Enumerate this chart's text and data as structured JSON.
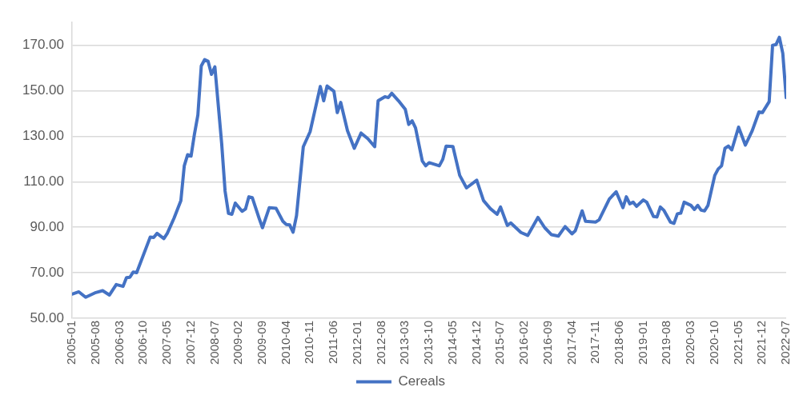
{
  "chart_data": {
    "type": "line",
    "xlim": [
      "2005-01",
      "2022-07"
    ],
    "xticks": [
      "2005-01",
      "2005-08",
      "2006-03",
      "2006-10",
      "2007-05",
      "2007-12",
      "2008-07",
      "2009-02",
      "2009-09",
      "2010-04",
      "2010-11",
      "2011-06",
      "2012-01",
      "2012-08",
      "2013-03",
      "2013-10",
      "2014-05",
      "2014-12",
      "2015-07",
      "2016-02",
      "2016-09",
      "2017-04",
      "2017-11",
      "2018-06",
      "2019-01",
      "2019-08",
      "2020-03",
      "2020-10",
      "2021-05",
      "2021-12",
      "2022-07"
    ],
    "ylim": [
      50,
      180
    ],
    "yticks": [
      {
        "value": 50,
        "label": "50.00"
      },
      {
        "value": 70,
        "label": "70.00"
      },
      {
        "value": 90,
        "label": "90.00"
      },
      {
        "value": 110,
        "label": "110.00"
      },
      {
        "value": 130,
        "label": "130.00"
      },
      {
        "value": 150,
        "label": "150.00"
      },
      {
        "value": 170,
        "label": "170.00"
      }
    ],
    "grid": "y",
    "legend": "bottom",
    "marker": "none",
    "line_style": "solid",
    "series": [
      {
        "name": "Cereals",
        "color": "#4472c4",
        "x": [
          "2005-01",
          "2005-03",
          "2005-05",
          "2005-08",
          "2005-10",
          "2005-12",
          "2006-02",
          "2006-04",
          "2006-05",
          "2006-06",
          "2006-07",
          "2006-08",
          "2006-12",
          "2007-01",
          "2007-02",
          "2007-04",
          "2007-05",
          "2007-07",
          "2007-09",
          "2007-10",
          "2007-11",
          "2007-12",
          "2008-01",
          "2008-02",
          "2008-03",
          "2008-04",
          "2008-05",
          "2008-06",
          "2008-07",
          "2008-09",
          "2008-10",
          "2008-11",
          "2008-12",
          "2009-01",
          "2009-03",
          "2009-04",
          "2009-05",
          "2009-06",
          "2009-08",
          "2009-09",
          "2009-11",
          "2010-01",
          "2010-03",
          "2010-04",
          "2010-05",
          "2010-06",
          "2010-07",
          "2010-09",
          "2010-11",
          "2011-02",
          "2011-03",
          "2011-04",
          "2011-06",
          "2011-07",
          "2011-08",
          "2011-10",
          "2011-12",
          "2012-02",
          "2012-04",
          "2012-06",
          "2012-07",
          "2012-09",
          "2012-10",
          "2012-11",
          "2013-01",
          "2013-03",
          "2013-04",
          "2013-05",
          "2013-06",
          "2013-08",
          "2013-09",
          "2013-10",
          "2014-01",
          "2014-02",
          "2014-03",
          "2014-05",
          "2014-07",
          "2014-09",
          "2014-12",
          "2015-02",
          "2015-04",
          "2015-06",
          "2015-07",
          "2015-09",
          "2015-10",
          "2016-01",
          "2016-03",
          "2016-06",
          "2016-08",
          "2016-10",
          "2016-12",
          "2017-02",
          "2017-04",
          "2017-05",
          "2017-07",
          "2017-08",
          "2017-11",
          "2017-12",
          "2018-03",
          "2018-05",
          "2018-07",
          "2018-08",
          "2018-09",
          "2018-10",
          "2018-11",
          "2019-01",
          "2019-02",
          "2019-04",
          "2019-05",
          "2019-06",
          "2019-07",
          "2019-09",
          "2019-10",
          "2019-11",
          "2019-12",
          "2020-01",
          "2020-03",
          "2020-04",
          "2020-05",
          "2020-06",
          "2020-07",
          "2020-08",
          "2020-10",
          "2020-11",
          "2020-12",
          "2021-01",
          "2021-02",
          "2021-03",
          "2021-05",
          "2021-07",
          "2021-09",
          "2021-11",
          "2021-12",
          "2022-02",
          "2022-03",
          "2022-04",
          "2022-05",
          "2022-06",
          "2022-07"
        ],
        "values": [
          60.6,
          61.6,
          59.2,
          61.3,
          62.1,
          60.2,
          64.8,
          64,
          67.8,
          68,
          70.3,
          70,
          85.7,
          85.5,
          87.3,
          85,
          87.3,
          94,
          101.7,
          117,
          121.9,
          121.3,
          131,
          139.3,
          160.9,
          163.7,
          163,
          157.2,
          160.5,
          126.8,
          105.9,
          96.1,
          95.7,
          100.6,
          97,
          98,
          103.4,
          103,
          94,
          89.8,
          98.6,
          98.3,
          92.6,
          91.2,
          91,
          87.8,
          95,
          125.4,
          132,
          151.9,
          145.6,
          152.1,
          149.8,
          140.4,
          144.9,
          132.4,
          124.7,
          131.4,
          128.9,
          125.4,
          145.6,
          147.4,
          147,
          148.9,
          145.6,
          141.8,
          135.2,
          136.8,
          133.7,
          119.1,
          117,
          118.4,
          117,
          119.8,
          125.7,
          125.5,
          112.8,
          107.3,
          110.7,
          101.7,
          98.2,
          95.7,
          98.9,
          90.8,
          91.9,
          87.7,
          86.4,
          94.3,
          89.8,
          86.7,
          86.1,
          90.3,
          87.1,
          88.5,
          97.2,
          92.6,
          92.3,
          93.3,
          102.4,
          105.6,
          98.6,
          103.4,
          100.3,
          101,
          99.2,
          102,
          101,
          94.7,
          94.5,
          98.9,
          97.5,
          92.2,
          91.7,
          95.9,
          96.2,
          101,
          99.6,
          97.8,
          99.6,
          97.5,
          97.2,
          99.6,
          112.8,
          115.6,
          117,
          124.7,
          125.7,
          124,
          134,
          126.1,
          132.4,
          140.7,
          140.4,
          145.2,
          170,
          170.3,
          173.5,
          166.5,
          147
        ]
      }
    ]
  }
}
